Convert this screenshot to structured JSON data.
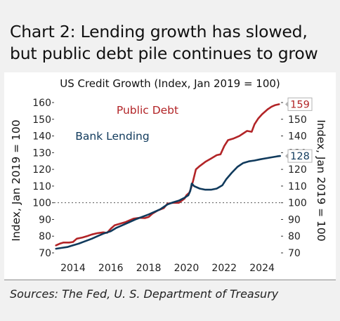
{
  "heading": {
    "line1": "Chart 2: Lending growth has slowed,",
    "line2": "but public debt pile continues to grow"
  },
  "source": "Sources: The Fed, U. S. Department of Treasury",
  "colors": {
    "public_debt": "#b22427",
    "bank_lending": "#103a5c",
    "end_label_border": "#b3b3b3"
  },
  "chart_data": {
    "type": "line",
    "title": "US Credit Growth (Index, Jan 2019 = 100)",
    "ylabel_left": "Index, Jan 2019 = 100",
    "ylabel_right": "Index, Jan 2019 = 100",
    "xlim": [
      2013,
      2025
    ],
    "ylim": [
      70,
      160
    ],
    "x_ticks": [
      2014,
      2016,
      2018,
      2020,
      2022,
      2024
    ],
    "y_ticks": [
      70,
      80,
      90,
      100,
      110,
      120,
      130,
      140,
      150,
      160
    ],
    "reference_line": {
      "y": 100,
      "style": "dotted"
    },
    "grid": false,
    "series": [
      {
        "name": "Public Debt",
        "end_label": "159",
        "points": [
          [
            2013.1,
            74.5
          ],
          [
            2013.3,
            75.5
          ],
          [
            2013.5,
            76.2
          ],
          [
            2013.8,
            76.2
          ],
          [
            2014.0,
            76.5
          ],
          [
            2014.2,
            78.5
          ],
          [
            2014.5,
            79.2
          ],
          [
            2014.8,
            80.2
          ],
          [
            2015.0,
            81.0
          ],
          [
            2015.3,
            81.8
          ],
          [
            2015.6,
            82.3
          ],
          [
            2015.8,
            82.0
          ],
          [
            2016.0,
            84.5
          ],
          [
            2016.2,
            86.5
          ],
          [
            2016.5,
            87.5
          ],
          [
            2016.8,
            88.5
          ],
          [
            2017.0,
            89.5
          ],
          [
            2017.2,
            90.5
          ],
          [
            2017.5,
            91.0
          ],
          [
            2017.8,
            90.8
          ],
          [
            2018.0,
            91.5
          ],
          [
            2018.2,
            93.5
          ],
          [
            2018.5,
            95.5
          ],
          [
            2018.8,
            96.8
          ],
          [
            2019.0,
            99.5
          ],
          [
            2019.3,
            100.0
          ],
          [
            2019.6,
            100.0
          ],
          [
            2019.9,
            102.5
          ],
          [
            2020.0,
            104.5
          ],
          [
            2020.15,
            106.0
          ],
          [
            2020.25,
            109.0
          ],
          [
            2020.35,
            113.0
          ],
          [
            2020.5,
            120.0
          ],
          [
            2020.7,
            122.0
          ],
          [
            2021.0,
            124.5
          ],
          [
            2021.3,
            126.5
          ],
          [
            2021.6,
            128.5
          ],
          [
            2021.8,
            129.0
          ],
          [
            2022.0,
            134.0
          ],
          [
            2022.2,
            137.5
          ],
          [
            2022.5,
            138.5
          ],
          [
            2022.8,
            140.0
          ],
          [
            2023.0,
            141.5
          ],
          [
            2023.2,
            143.0
          ],
          [
            2023.45,
            142.5
          ],
          [
            2023.6,
            147.0
          ],
          [
            2023.8,
            150.5
          ],
          [
            2024.0,
            153.0
          ],
          [
            2024.3,
            156.0
          ],
          [
            2024.5,
            157.5
          ],
          [
            2024.7,
            158.5
          ],
          [
            2024.9,
            159.0
          ]
        ]
      },
      {
        "name": "Bank Lending",
        "end_label": "128",
        "points": [
          [
            2013.1,
            72.5
          ],
          [
            2013.4,
            73.0
          ],
          [
            2013.7,
            73.5
          ],
          [
            2014.0,
            74.5
          ],
          [
            2014.3,
            75.5
          ],
          [
            2014.6,
            76.8
          ],
          [
            2015.0,
            78.5
          ],
          [
            2015.3,
            80.0
          ],
          [
            2015.6,
            81.5
          ],
          [
            2016.0,
            83.0
          ],
          [
            2016.3,
            85.0
          ],
          [
            2016.6,
            86.5
          ],
          [
            2017.0,
            88.5
          ],
          [
            2017.3,
            90.0
          ],
          [
            2017.6,
            91.3
          ],
          [
            2018.0,
            93.0
          ],
          [
            2018.3,
            94.5
          ],
          [
            2018.6,
            96.0
          ],
          [
            2019.0,
            99.0
          ],
          [
            2019.3,
            100.3
          ],
          [
            2019.6,
            101.3
          ],
          [
            2019.9,
            103.0
          ],
          [
            2020.1,
            104.5
          ],
          [
            2020.2,
            107.0
          ],
          [
            2020.28,
            111.5
          ],
          [
            2020.4,
            110.0
          ],
          [
            2020.7,
            108.5
          ],
          [
            2021.0,
            107.8
          ],
          [
            2021.3,
            107.8
          ],
          [
            2021.6,
            108.5
          ],
          [
            2021.9,
            110.5
          ],
          [
            2022.1,
            114.0
          ],
          [
            2022.4,
            118.0
          ],
          [
            2022.7,
            121.5
          ],
          [
            2023.0,
            123.8
          ],
          [
            2023.3,
            124.8
          ],
          [
            2023.6,
            125.3
          ],
          [
            2023.9,
            126.0
          ],
          [
            2024.2,
            126.6
          ],
          [
            2024.5,
            127.2
          ],
          [
            2024.8,
            127.8
          ],
          [
            2024.95,
            128.0
          ]
        ]
      }
    ]
  }
}
